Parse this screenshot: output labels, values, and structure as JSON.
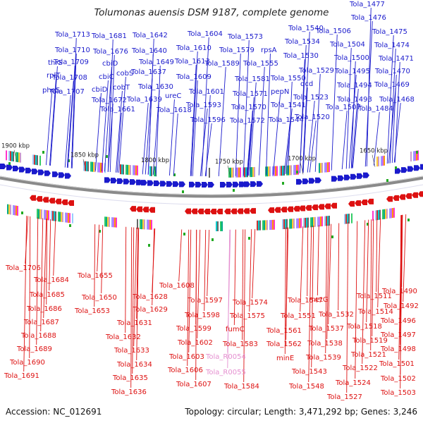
{
  "title": "Tolumonas auensis DSM 9187, complete genome",
  "footer": {
    "accession": "Accession: NC_012691",
    "summary": "Topology: circular; Length: 3,471,292 bp; Genes: 3,246"
  },
  "ticks": [
    {
      "label": "1900 kbp",
      "kbp": 1900
    },
    {
      "label": "1850 kbp",
      "kbp": 1850
    },
    {
      "label": "1800 kbp",
      "kbp": 1800
    },
    {
      "label": "1750 kbp",
      "kbp": 1750
    },
    {
      "label": "1700 kbp",
      "kbp": 1700
    },
    {
      "label": "1650 kbp",
      "kbp": 1650
    }
  ],
  "colors": {
    "forward": "#1a1acc",
    "reverse": "#dd1111",
    "rna": "#e58fd0",
    "backbone": "#888888"
  },
  "forward_labels": [
    "thrS",
    "rplT",
    "pheS",
    "Tola_1713",
    "Tola_1710",
    "Tola_1709",
    "Tola_1708",
    "Tola_1707",
    "Tola_1681",
    "Tola_1676",
    "cbiD",
    "cbiC",
    "cbiD",
    "Tola_1672",
    "Tola_1661",
    "cobS",
    "cobT",
    "Tola_1642",
    "Tola_1640",
    "Tola_1649",
    "Tola_1637",
    "Tola_1630",
    "Tola_1639",
    "ureC",
    "Tola_1618",
    "Tola_1604",
    "Tola_1610",
    "Tola_1613",
    "Tola_1609",
    "Tola_1601",
    "Tola_1593",
    "Tola_1596",
    "Tola_1573",
    "Tola_1579",
    "rpsA",
    "Tola_1589",
    "Tola_1581",
    "Tola_1571",
    "Tola_1570",
    "Tola_1572",
    "Tola_1540",
    "Tola_1534",
    "Tola_1555",
    "Tola_1530",
    "Tola_1550",
    "pepN",
    "Tola_1541",
    "Tola_1544",
    "Tola_1529",
    "dcd",
    "Tola_1523",
    "Tola_1520",
    "Tola_1506",
    "Tola_1504",
    "Tola_1500",
    "Tola_1495",
    "Tola_1494",
    "Tola_1493",
    "Tola_1507",
    "Tola_1477",
    "Tola_1476",
    "Tola_1475",
    "Tola_1474",
    "Tola_1471",
    "Tola_1470",
    "Tola_1469",
    "Tola_1468",
    "Tola_1484"
  ],
  "reverse_labels": [
    "Tola_1706",
    "Tola_1684",
    "Tola_1685",
    "Tola_1686",
    "Tola_1687",
    "Tola_1688",
    "Tola_1689",
    "Tola_1690",
    "Tola_1691",
    "Tola_1655",
    "Tola_1650",
    "Tola_1653",
    "Tola_1628",
    "Tola_1629",
    "Tola_1631",
    "Tola_1632",
    "Tola_1633",
    "Tola_1634",
    "Tola_1635",
    "Tola_1636",
    "Tola_1608",
    "Tola_1597",
    "Tola_1598",
    "Tola_1599",
    "Tola_1602",
    "Tola_1603",
    "Tola_1606",
    "Tola_1607",
    "Tola_1574",
    "Tola_1575",
    "fumC",
    "Tola_1583",
    "Tola_R0054",
    "Tola_R0055",
    "Tola_1584",
    "Tola_1547",
    "Tola_1551",
    "Tola_1561",
    "Tola_1562",
    "minE",
    "Tola_1548",
    "Tola_1543",
    "metG",
    "Tola_1532",
    "Tola_1537",
    "Tola_1538",
    "Tola_1539",
    "Tola_1511",
    "Tola_1514",
    "Tola_1518",
    "Tola_1519",
    "Tola_1521",
    "Tola_1522",
    "Tola_1524",
    "Tola_1527",
    "Tola_1490",
    "Tola_1492",
    "Tola_1496",
    "Tola_1497",
    "Tola_1498",
    "Tola_1501",
    "Tola_1502",
    "Tola_1503"
  ]
}
